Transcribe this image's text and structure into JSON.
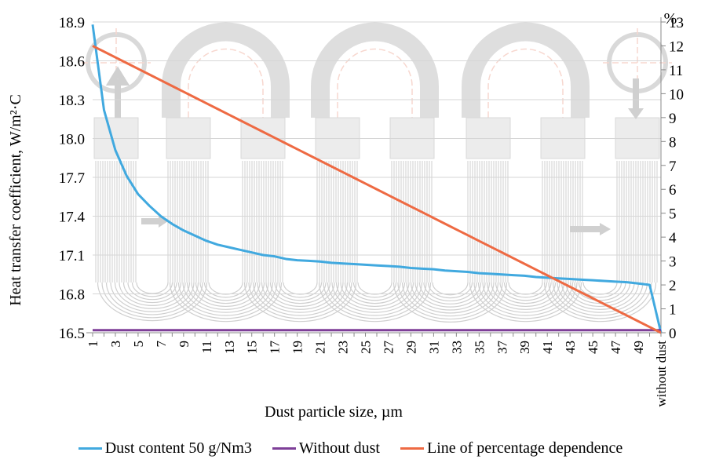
{
  "chart_data": {
    "type": "line",
    "xlabel": "Dust particle size, µm",
    "ylabel": "Heat transfer coefficient, W/m²·C",
    "y2label": "%",
    "x": [
      "1",
      "2",
      "3",
      "4",
      "5",
      "6",
      "7",
      "8",
      "9",
      "10",
      "11",
      "12",
      "13",
      "14",
      "15",
      "16",
      "17",
      "18",
      "19",
      "20",
      "21",
      "22",
      "23",
      "24",
      "25",
      "26",
      "27",
      "28",
      "29",
      "30",
      "31",
      "32",
      "33",
      "34",
      "35",
      "36",
      "37",
      "38",
      "39",
      "40",
      "41",
      "42",
      "43",
      "44",
      "45",
      "46",
      "47",
      "48",
      "49",
      "50",
      "without dust"
    ],
    "x_tick_labels": [
      "1",
      "3",
      "5",
      "7",
      "9",
      "11",
      "13",
      "15",
      "17",
      "19",
      "21",
      "23",
      "25",
      "27",
      "29",
      "31",
      "33",
      "35",
      "37",
      "39",
      "41",
      "43",
      "45",
      "47",
      "49",
      "without dust"
    ],
    "ylim": [
      16.5,
      18.9
    ],
    "yticks": [
      16.5,
      16.8,
      17.1,
      17.4,
      17.7,
      18.0,
      18.3,
      18.6,
      18.9
    ],
    "y2lim": [
      0,
      13
    ],
    "y2ticks": [
      0,
      1,
      2,
      3,
      4,
      5,
      6,
      7,
      8,
      9,
      10,
      11,
      12,
      13
    ],
    "series": [
      {
        "name": "Dust content 50 g/Nm3",
        "axis": "left",
        "color": "#41A9DF",
        "values": [
          18.88,
          18.22,
          17.91,
          17.71,
          17.57,
          17.48,
          17.4,
          17.34,
          17.29,
          17.25,
          17.21,
          17.18,
          17.16,
          17.14,
          17.12,
          17.1,
          17.09,
          17.07,
          17.06,
          17.055,
          17.05,
          17.04,
          17.035,
          17.03,
          17.025,
          17.02,
          17.015,
          17.01,
          17.0,
          16.995,
          16.99,
          16.98,
          16.975,
          16.97,
          16.96,
          16.955,
          16.95,
          16.945,
          16.94,
          16.93,
          16.925,
          16.92,
          16.915,
          16.91,
          16.905,
          16.9,
          16.895,
          16.89,
          16.88,
          16.87,
          16.5
        ]
      },
      {
        "name": "Without dust",
        "axis": "left",
        "color": "#7E3F98",
        "values": [
          16.52,
          16.52,
          16.52,
          16.52,
          16.52,
          16.52,
          16.52,
          16.52,
          16.52,
          16.52,
          16.52,
          16.52,
          16.52,
          16.52,
          16.52,
          16.52,
          16.52,
          16.52,
          16.52,
          16.52,
          16.52,
          16.52,
          16.52,
          16.52,
          16.52,
          16.52,
          16.52,
          16.52,
          16.52,
          16.52,
          16.52,
          16.52,
          16.52,
          16.52,
          16.52,
          16.52,
          16.52,
          16.52,
          16.52,
          16.52,
          16.52,
          16.52,
          16.52,
          16.52,
          16.52,
          16.52,
          16.52,
          16.52,
          16.52,
          16.52,
          16.52
        ]
      },
      {
        "name": "Line of percentage dependence",
        "axis": "right",
        "color": "#EE6A43",
        "values": [
          12.0,
          11.76,
          11.52,
          11.28,
          11.04,
          10.8,
          10.56,
          10.32,
          10.08,
          9.84,
          9.6,
          9.36,
          9.12,
          8.88,
          8.64,
          8.4,
          8.16,
          7.92,
          7.68,
          7.44,
          7.2,
          6.96,
          6.72,
          6.48,
          6.24,
          6.0,
          5.76,
          5.52,
          5.28,
          5.04,
          4.8,
          4.56,
          4.32,
          4.08,
          3.84,
          3.6,
          3.36,
          3.12,
          2.88,
          2.64,
          2.4,
          2.16,
          1.92,
          1.68,
          1.44,
          1.2,
          0.96,
          0.72,
          0.48,
          0.24,
          0.0
        ]
      }
    ],
    "grid": true,
    "legend_position": "bottom",
    "background_illustration": "heat-exchanger-coil"
  }
}
